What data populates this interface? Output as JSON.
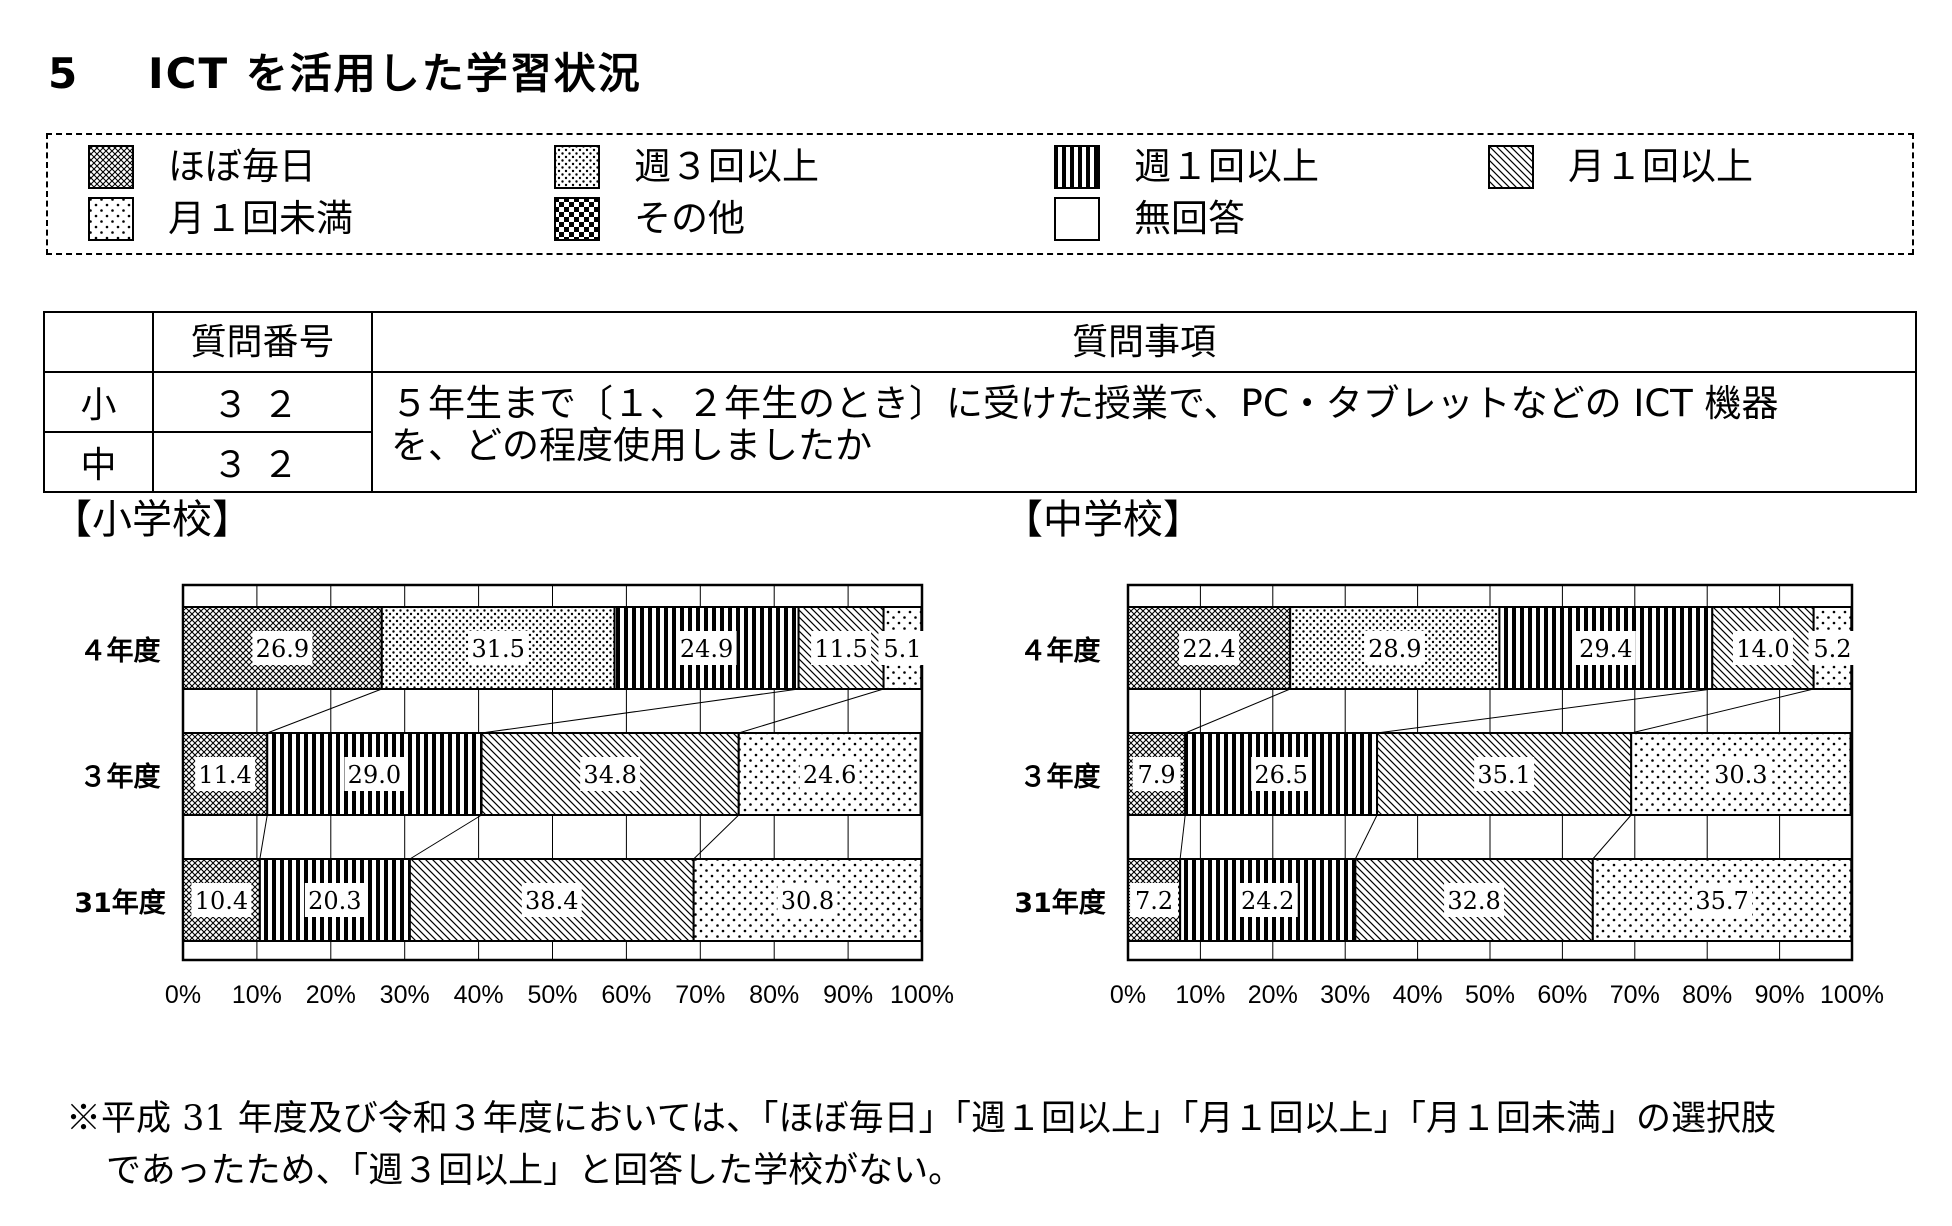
{
  "page_title": {
    "number": "5",
    "text": "ICT を活用した学習状況"
  },
  "legend": [
    {
      "label": "ほぼ毎日",
      "pattern": "crosshatch"
    },
    {
      "label": "週３回以上",
      "pattern": "dense-dots"
    },
    {
      "label": "週１回以上",
      "pattern": "vertical-stripes"
    },
    {
      "label": "月１回以上",
      "pattern": "diagonal"
    },
    {
      "label": "月１回未満",
      "pattern": "sparse-dots"
    },
    {
      "label": "その他",
      "pattern": "checker"
    },
    {
      "label": "無回答",
      "pattern": "blank"
    }
  ],
  "question_table": {
    "headers": {
      "blank": "",
      "number": "質問番号",
      "item": "質問事項"
    },
    "rows": [
      {
        "level": "小",
        "number": "３２"
      },
      {
        "level": "中",
        "number": "３２"
      }
    ],
    "text_line1": "５年生まで〔１、２年生のとき〕に受けた授業で、PC・タブレットなどの ICT 機器",
    "text_line2": "を、どの程度使用しましたか"
  },
  "chart_data": [
    {
      "type": "bar",
      "orientation": "horizontal-stacked-100",
      "heading": "【小学校】",
      "categories": [
        "４年度",
        "３年度",
        "31年度"
      ],
      "xlim": [
        0,
        100
      ],
      "xticks": [
        "0%",
        "10%",
        "20%",
        "30%",
        "40%",
        "50%",
        "60%",
        "70%",
        "80%",
        "90%",
        "100%"
      ],
      "rows": [
        {
          "category": "４年度",
          "segments": [
            {
              "pattern": "crosshatch",
              "value": 26.9,
              "label": "26.9"
            },
            {
              "pattern": "dense-dots",
              "value": 31.5,
              "label": "31.5"
            },
            {
              "pattern": "vertical-stripes",
              "value": 24.9,
              "label": "24.9"
            },
            {
              "pattern": "diagonal",
              "value": 11.5,
              "label": "11.5"
            },
            {
              "pattern": "sparse-dots",
              "value": 5.1,
              "label": "5.1"
            }
          ]
        },
        {
          "category": "３年度",
          "segments": [
            {
              "pattern": "crosshatch",
              "value": 11.4,
              "label": "11.4"
            },
            {
              "pattern": "vertical-stripes",
              "value": 29.0,
              "label": "29.0"
            },
            {
              "pattern": "diagonal",
              "value": 34.8,
              "label": "34.8"
            },
            {
              "pattern": "sparse-dots",
              "value": 24.6,
              "label": "24.6"
            }
          ]
        },
        {
          "category": "31年度",
          "segments": [
            {
              "pattern": "crosshatch",
              "value": 10.4,
              "label": "10.4"
            },
            {
              "pattern": "vertical-stripes",
              "value": 20.3,
              "label": "20.3"
            },
            {
              "pattern": "diagonal",
              "value": 38.4,
              "label": "38.4"
            },
            {
              "pattern": "sparse-dots",
              "value": 30.8,
              "label": "30.8"
            }
          ]
        }
      ]
    },
    {
      "type": "bar",
      "orientation": "horizontal-stacked-100",
      "heading": "【中学校】",
      "categories": [
        "４年度",
        "３年度",
        "31年度"
      ],
      "xlim": [
        0,
        100
      ],
      "xticks": [
        "0%",
        "10%",
        "20%",
        "30%",
        "40%",
        "50%",
        "60%",
        "70%",
        "80%",
        "90%",
        "100%"
      ],
      "rows": [
        {
          "category": "４年度",
          "segments": [
            {
              "pattern": "crosshatch",
              "value": 22.4,
              "label": "22.4"
            },
            {
              "pattern": "dense-dots",
              "value": 28.9,
              "label": "28.9"
            },
            {
              "pattern": "vertical-stripes",
              "value": 29.4,
              "label": "29.4"
            },
            {
              "pattern": "diagonal",
              "value": 14.0,
              "label": "14.0"
            },
            {
              "pattern": "sparse-dots",
              "value": 5.2,
              "label": "5.2"
            }
          ]
        },
        {
          "category": "３年度",
          "segments": [
            {
              "pattern": "crosshatch",
              "value": 7.9,
              "label": "7.9"
            },
            {
              "pattern": "vertical-stripes",
              "value": 26.5,
              "label": "26.5"
            },
            {
              "pattern": "diagonal",
              "value": 35.1,
              "label": "35.1"
            },
            {
              "pattern": "sparse-dots",
              "value": 30.3,
              "label": "30.3"
            }
          ]
        },
        {
          "category": "31年度",
          "segments": [
            {
              "pattern": "crosshatch",
              "value": 7.2,
              "label": "7.2"
            },
            {
              "pattern": "vertical-stripes",
              "value": 24.2,
              "label": "24.2"
            },
            {
              "pattern": "diagonal",
              "value": 32.8,
              "label": "32.8"
            },
            {
              "pattern": "sparse-dots",
              "value": 35.7,
              "label": "35.7"
            }
          ]
        }
      ]
    }
  ],
  "note": {
    "line1": "※平成 31 年度及び令和３年度においては、「ほぼ毎日」「週１回以上」「月１回以上」「月１回未満」の選択肢",
    "line2": "であったため、「週３回以上」と回答した学校がない。"
  }
}
